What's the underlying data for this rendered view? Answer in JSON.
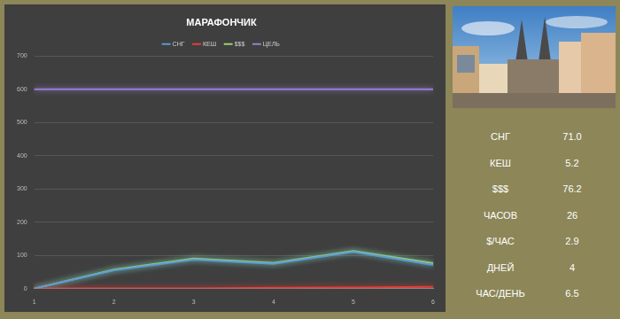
{
  "chart_data": {
    "type": "line",
    "title": "МАРАФОНЧИК",
    "categories": [
      "1",
      "2",
      "3",
      "4",
      "5",
      "6"
    ],
    "series": [
      {
        "name": "СНГ",
        "color": "#5b9bd5",
        "values": [
          0,
          55,
          87,
          74,
          110,
          71.0
        ]
      },
      {
        "name": "КЕШ",
        "color": "#e0403a",
        "values": [
          0,
          0,
          0,
          2,
          3,
          5.2
        ]
      },
      {
        "name": "$$$",
        "color": "#9bd36a",
        "values": [
          0,
          57,
          90,
          77,
          113,
          76.2
        ]
      },
      {
        "name": "ЦЕЛЬ",
        "color": "#9a7fd1",
        "values": [
          600,
          600,
          600,
          600,
          600,
          600
        ]
      }
    ],
    "ylim": [
      0,
      700
    ],
    "yticks": [
      0,
      100,
      200,
      300,
      400,
      500,
      600,
      700
    ],
    "grid": true,
    "legend": "top",
    "marker": "none"
  },
  "panel": {
    "stats": [
      {
        "label": "СНГ",
        "value": "71.0"
      },
      {
        "label": "КЕШ",
        "value": "5.2"
      },
      {
        "label": "$$$",
        "value": "76.2"
      },
      {
        "label": "ЧАСОВ",
        "value": "26"
      },
      {
        "label": "$/ЧАС",
        "value": "2.9"
      },
      {
        "label": "ДНЕЙ",
        "value": "4"
      },
      {
        "label": "ЧАС/ДЕНЬ",
        "value": "6.5"
      }
    ]
  }
}
